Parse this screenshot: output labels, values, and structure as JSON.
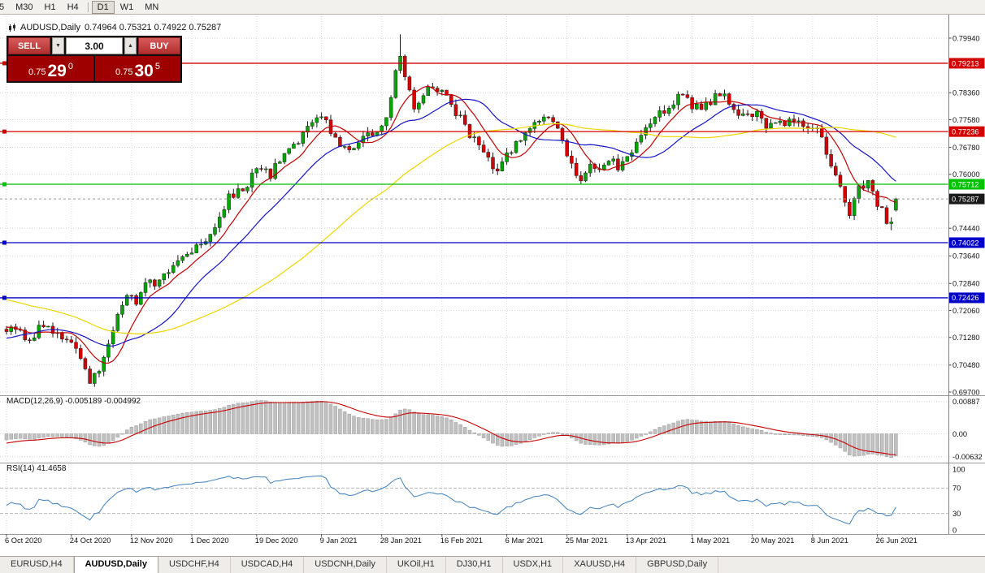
{
  "toolbar": {
    "periods": [
      {
        "label": "5",
        "active": false
      },
      {
        "label": "M30",
        "active": false
      },
      {
        "label": "H1",
        "active": false
      },
      {
        "label": "H4",
        "active": false
      },
      {
        "label": "D1",
        "active": true,
        "separator_before": true
      },
      {
        "label": "W1",
        "active": false
      },
      {
        "label": "MN",
        "active": false
      }
    ]
  },
  "chart_header": {
    "symbol_period": "AUDUSD,Daily",
    "ohlc": "0.74964 0.75321 0.74922 0.75287"
  },
  "trade_panel": {
    "sell_label": "SELL",
    "buy_label": "BUY",
    "volume": "3.00",
    "icons": {
      "volume_down": "▼",
      "volume_up": "▲"
    },
    "sell_price": {
      "prefix": "0.75",
      "big": "29",
      "sup": "0"
    },
    "buy_price": {
      "prefix": "0.75",
      "big": "30",
      "sup": "5"
    }
  },
  "indicator_labels": {
    "macd": "MACD(12,26,9) -0.005189 -0.004992",
    "rsi": "RSI(14) 41.4658"
  },
  "tabs": [
    {
      "label": "EURUSD,H4",
      "active": false
    },
    {
      "label": "AUDUSD,Daily",
      "active": true
    },
    {
      "label": "USDCHF,H4",
      "active": false
    },
    {
      "label": "USDCAD,H4",
      "active": false
    },
    {
      "label": "USDCNH,Daily",
      "active": false
    },
    {
      "label": "UKOil,H1",
      "active": false
    },
    {
      "label": "DJ30,H1",
      "active": false
    },
    {
      "label": "USDX,H1",
      "active": false
    },
    {
      "label": "XAUUSD,H4",
      "active": false
    },
    {
      "label": "GBPUSD,Daily",
      "active": false
    }
  ],
  "chart_data": {
    "type": "candlestick",
    "symbol": "AUDUSD",
    "period": "Daily",
    "y_axis": {
      "min": 0.697,
      "max": 0.7994,
      "plain_labels": [
        0.7994,
        0.7836,
        0.7758,
        0.7678,
        0.76,
        0.7444,
        0.7364,
        0.7284,
        0.7206,
        0.7128,
        0.7048,
        0.697
      ]
    },
    "price_lines": [
      {
        "price": 0.79213,
        "color": "#D40000"
      },
      {
        "price": 0.77236,
        "color": "#D40000"
      },
      {
        "price": 0.75712,
        "color": "#00C200"
      },
      {
        "price": 0.74022,
        "color": "#0000C8"
      },
      {
        "price": 0.72426,
        "color": "#0000C8"
      }
    ],
    "current_price": {
      "value": 0.75287,
      "badge_color": "#1A1A1A"
    },
    "last_candle": {
      "open": 0.74964,
      "high": 0.75321,
      "low": 0.74922,
      "close": 0.75287
    },
    "n_candles": 193,
    "special": {
      "peak_index": 85,
      "peak_high": 0.8005,
      "trough_index": 191,
      "trough_low": 0.7438
    },
    "candle_colors": {
      "up": "#00A800",
      "down": "#D80000",
      "wick": "#1A1A1A"
    },
    "price_waypoints": [
      [
        -100,
        0.715
      ],
      [
        -80,
        0.726
      ],
      [
        -62,
        0.735
      ],
      [
        -48,
        0.7305
      ],
      [
        -38,
        0.7365
      ],
      [
        -28,
        0.73
      ],
      [
        -16,
        0.706
      ],
      [
        -6,
        0.7185
      ],
      [
        0,
        0.7135
      ],
      [
        2,
        0.716
      ],
      [
        5,
        0.712
      ],
      [
        8,
        0.7165
      ],
      [
        11,
        0.7145
      ],
      [
        14,
        0.7105
      ],
      [
        16,
        0.706
      ],
      [
        18,
        0.7008
      ],
      [
        20,
        0.703
      ],
      [
        22,
        0.712
      ],
      [
        24,
        0.719
      ],
      [
        26,
        0.7255
      ],
      [
        28,
        0.723
      ],
      [
        30,
        0.73
      ],
      [
        33,
        0.7285
      ],
      [
        36,
        0.734
      ],
      [
        40,
        0.7385
      ],
      [
        44,
        0.743
      ],
      [
        48,
        0.753
      ],
      [
        51,
        0.7555
      ],
      [
        54,
        0.7615
      ],
      [
        57,
        0.76
      ],
      [
        60,
        0.766
      ],
      [
        63,
        0.77
      ],
      [
        66,
        0.775
      ],
      [
        68,
        0.777
      ],
      [
        71,
        0.77
      ],
      [
        74,
        0.767
      ],
      [
        77,
        0.771
      ],
      [
        80,
        0.7725
      ],
      [
        82,
        0.7755
      ],
      [
        84,
        0.7905
      ],
      [
        85,
        0.7955
      ],
      [
        86,
        0.789
      ],
      [
        88,
        0.78
      ],
      [
        90,
        0.7835
      ],
      [
        92,
        0.7855
      ],
      [
        94,
        0.7845
      ],
      [
        96,
        0.78
      ],
      [
        98,
        0.776
      ],
      [
        100,
        0.772
      ],
      [
        102,
        0.768
      ],
      [
        104,
        0.764
      ],
      [
        106,
        0.76
      ],
      [
        108,
        0.766
      ],
      [
        110,
        0.769
      ],
      [
        113,
        0.773
      ],
      [
        116,
        0.777
      ],
      [
        118,
        0.774
      ],
      [
        120,
        0.77
      ],
      [
        122,
        0.763
      ],
      [
        124,
        0.759
      ],
      [
        126,
        0.762
      ],
      [
        128,
        0.76
      ],
      [
        130,
        0.7645
      ],
      [
        132,
        0.762
      ],
      [
        134,
        0.7645
      ],
      [
        136,
        0.769
      ],
      [
        138,
        0.773
      ],
      [
        140,
        0.776
      ],
      [
        142,
        0.7785
      ],
      [
        144,
        0.781
      ],
      [
        146,
        0.784
      ],
      [
        148,
        0.78
      ],
      [
        150,
        0.778
      ],
      [
        152,
        0.781
      ],
      [
        154,
        0.784
      ],
      [
        156,
        0.78
      ],
      [
        158,
        0.776
      ],
      [
        160,
        0.778
      ],
      [
        162,
        0.777
      ],
      [
        164,
        0.774
      ],
      [
        166,
        0.776
      ],
      [
        168,
        0.775
      ],
      [
        170,
        0.776
      ],
      [
        172,
        0.7745
      ],
      [
        174,
        0.774
      ],
      [
        176,
        0.771
      ],
      [
        178,
        0.761
      ],
      [
        180,
        0.756
      ],
      [
        182,
        0.7478
      ],
      [
        184,
        0.756
      ],
      [
        186,
        0.7585
      ],
      [
        188,
        0.752
      ],
      [
        190,
        0.7468
      ],
      [
        191,
        0.7455
      ],
      [
        192,
        0.75287
      ]
    ],
    "moving_averages": [
      {
        "period": 8,
        "color": "#C00000"
      },
      {
        "period": 20,
        "color": "#1414C8"
      },
      {
        "period": 55,
        "color": "#EED500"
      }
    ],
    "x_ticks": [
      {
        "label": "6 Oct 2020",
        "index": 0
      },
      {
        "label": "24 Oct 2020",
        "index": 14
      },
      {
        "label": "12 Nov 2020",
        "index": 27
      },
      {
        "label": "1 Dec 2020",
        "index": 40
      },
      {
        "label": "19 Dec 2020",
        "index": 54
      },
      {
        "label": "9 Jan 2021",
        "index": 68
      },
      {
        "label": "28 Jan 2021",
        "index": 81
      },
      {
        "label": "16 Feb 2021",
        "index": 94
      },
      {
        "label": "6 Mar 2021",
        "index": 108
      },
      {
        "label": "25 Mar 2021",
        "index": 121
      },
      {
        "label": "13 Apr 2021",
        "index": 134
      },
      {
        "label": "1 May 2021",
        "index": 148
      },
      {
        "label": "20 May 2021",
        "index": 161
      },
      {
        "label": "8 Jun 2021",
        "index": 174
      },
      {
        "label": "26 Jun 2021",
        "index": 188
      }
    ],
    "macd": {
      "params": [
        12,
        26,
        9
      ],
      "main_value": -0.005189,
      "signal_value": -0.004992,
      "axis_labels": [
        {
          "v": 0.00887,
          "text": "0.00887"
        },
        {
          "v": 0,
          "text": "0.00"
        },
        {
          "v": -0.00632,
          "text": "-0.00632"
        }
      ],
      "histogram_color": "#C0C0C0",
      "signal_color": "#C80000"
    },
    "rsi": {
      "period": 14,
      "value": 41.4658,
      "axis_labels": [
        {
          "v": 100,
          "text": "100"
        },
        {
          "v": 70,
          "text": "70"
        },
        {
          "v": 30,
          "text": "30"
        },
        {
          "v": 0,
          "text": "0"
        }
      ],
      "levels": [
        70,
        30
      ],
      "line_color": "#3E80BE"
    }
  }
}
